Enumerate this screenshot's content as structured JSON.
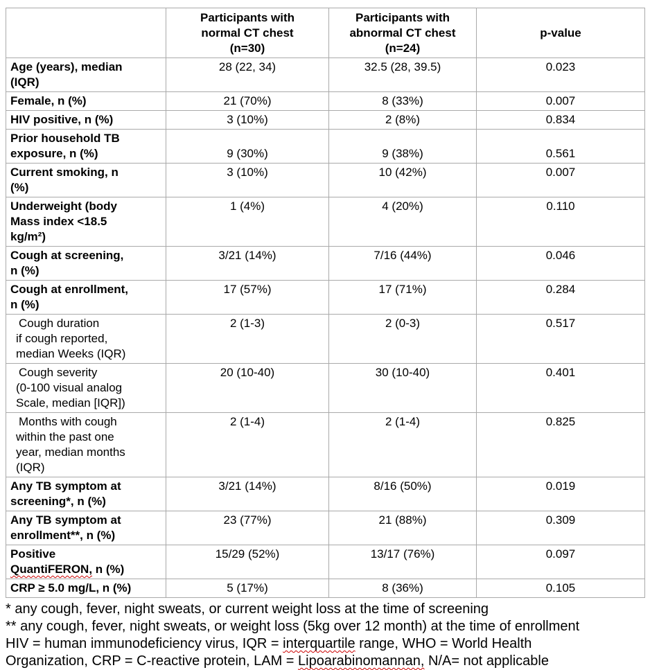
{
  "table": {
    "header": {
      "corner": "",
      "normal_ct": "Participants with\nnormal CT chest\n(n=30)",
      "abnormal_ct": "Participants with\nabnormal CT chest\n(n=24)",
      "p_value": "p-value"
    },
    "rows": [
      {
        "label": "Age (years), median\n(IQR)",
        "normal": "28 (22, 34)",
        "abnormal": "32.5 (28, 39.5)",
        "p": "0.023"
      },
      {
        "label": "Female, n (%)",
        "normal": "21 (70%)",
        "abnormal": "8 (33%)",
        "p": "0.007"
      },
      {
        "label": "HIV positive, n (%)",
        "normal": "3 (10%)",
        "abnormal": "2 (8%)",
        "p": "0.834"
      },
      {
        "label": "Prior household TB\nexposure, n (%)",
        "normal": "9 (30%)",
        "abnormal": "9 (38%)",
        "p": "0.561"
      },
      {
        "label": "Current smoking, n\n(%)",
        "normal": "3 (10%)",
        "abnormal": "10 (42%)",
        "p": "0.007"
      },
      {
        "label": "Underweight (body\nMass index <18.5\nkg/m²)",
        "normal": "1 (4%)",
        "abnormal": "4 (20%)",
        "p": "0.110"
      },
      {
        "label": "Cough at screening,\nn (%)",
        "normal": "3/21 (14%)",
        "abnormal": "7/16 (44%)",
        "p": "0.046"
      },
      {
        "label": "Cough at enrollment,\nn (%)",
        "normal": "17 (57%)",
        "abnormal": "17 (71%)",
        "p": "0.284"
      },
      {
        "label": "Cough duration\nif cough reported,\nmedian Weeks (IQR)",
        "normal": "2 (1-3)",
        "abnormal": "2 (0-3)",
        "p": "0.517"
      },
      {
        "label": "Cough severity\n(0-100 visual analog\nScale, median [IQR])",
        "normal": "20 (10-40)",
        "abnormal": "30 (10-40)",
        "p": "0.401"
      },
      {
        "label": "Months with cough\nwithin the past one\nyear, median months\n(IQR)",
        "normal": "2 (1-4)",
        "abnormal": "2 (1-4)",
        "p": "0.825"
      },
      {
        "label": "Any TB symptom at\nscreening*, n (%)",
        "normal": "3/21 (14%)",
        "abnormal": "8/16 (50%)",
        "p": "0.019"
      },
      {
        "label": "Any TB symptom at\nenrollment**, n (%)",
        "normal": "23 (77%)",
        "abnormal": "21 (88%)",
        "p": "0.309"
      },
      {
        "label_segments": [
          {
            "text": "Positive\n",
            "squiggle": false
          },
          {
            "text": "QuantiFERON,",
            "squiggle": true
          },
          {
            "text": " n (%)",
            "squiggle": false
          }
        ],
        "normal": "15/29 (52%)",
        "abnormal": "13/17 (76%)",
        "p": "0.097"
      },
      {
        "label": "CRP ≥ 5.0 mg/L, n (%)",
        "normal": "5 (17%)",
        "abnormal": "8 (36%)",
        "p": "0.105"
      }
    ]
  },
  "footnotes": {
    "screening": "* any cough, fever, night sweats, or current weight loss at the time of screening",
    "enrollment": "** any cough, fever, night sweats, or weight loss (5kg over 12 month) at the time of enrollment",
    "abbreviations_segments": [
      {
        "text": "HIV = human immunodeficiency virus, IQR = ",
        "squiggle": false
      },
      {
        "text": "interquartile",
        "squiggle": true
      },
      {
        "text": " range, WHO = World Health\nOrganization, CRP = C-reactive protein, LAM = ",
        "squiggle": false
      },
      {
        "text": "Lipoarabinomannan,",
        "squiggle": true
      },
      {
        "text": " N/A= not applicable",
        "squiggle": false
      }
    ]
  },
  "colors": {
    "table_border": "#a9a9a9",
    "spellcheck_underline": "#cc0000",
    "text": "#000000",
    "background": "#ffffff"
  }
}
